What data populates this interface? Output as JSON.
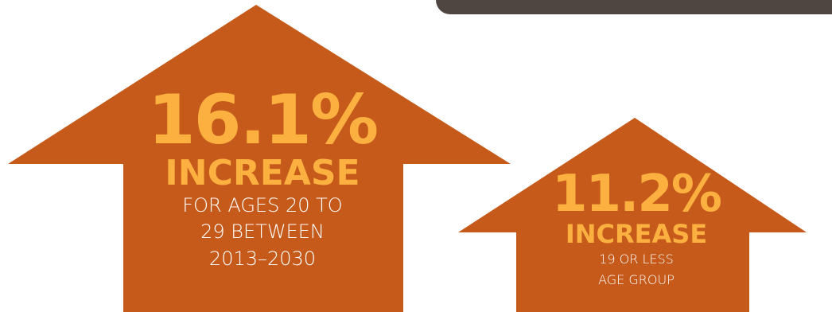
{
  "colors": {
    "arrow": "#c55a1a",
    "accent": "#fbb040",
    "text": "#ffffff",
    "bar": "#4f4642"
  },
  "stat_1": {
    "percent": "16.1%",
    "word": "INCREASE",
    "desc_line_1": "FOR AGES 20 TO",
    "desc_line_2": "29 BETWEEN",
    "desc_line_3": "2013–2030"
  },
  "stat_2": {
    "percent": "11.2%",
    "word": "INCREASE",
    "desc_line_1": "19 OR LESS",
    "desc_line_2": "AGE GROUP"
  }
}
